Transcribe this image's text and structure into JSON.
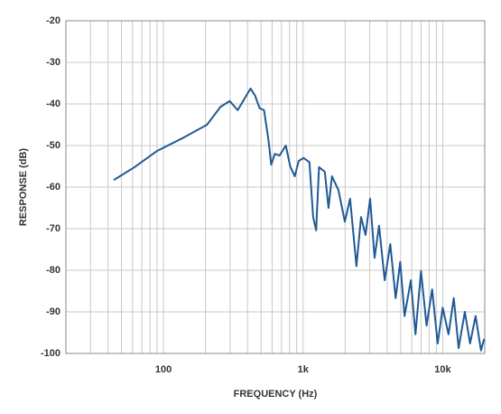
{
  "chart_data": {
    "type": "line",
    "x_label": "FREQUENCY (Hz)",
    "y_label": "RESPONSE (dB)",
    "log_x": true,
    "grid": true,
    "xlim": [
      20,
      20000
    ],
    "ylim": [
      -100,
      -20
    ],
    "xticks": [
      {
        "value": 100,
        "label": "100"
      },
      {
        "value": 1000,
        "label": "1k"
      },
      {
        "value": 10000,
        "label": "10k"
      }
    ],
    "xminorticks": [
      20,
      30,
      40,
      50,
      60,
      70,
      80,
      90,
      200,
      300,
      400,
      500,
      600,
      700,
      800,
      900,
      2000,
      3000,
      4000,
      5000,
      6000,
      7000,
      8000,
      9000
    ],
    "yticks": [
      -20,
      -30,
      -40,
      -50,
      -60,
      -70,
      -80,
      -90,
      -100
    ],
    "x": [
      44,
      62,
      90,
      141,
      205,
      256,
      298,
      340,
      384,
      420,
      453,
      488,
      525,
      565,
      591,
      628,
      678,
      752,
      808,
      872,
      930,
      1010,
      1110,
      1180,
      1240,
      1300,
      1430,
      1520,
      1610,
      1790,
      1990,
      2170,
      2410,
      2600,
      2800,
      3020,
      3250,
      3500,
      3840,
      4210,
      4600,
      4960,
      5330,
      5910,
      6380,
      6990,
      7660,
      8400,
      9200,
      10000,
      11000,
      12000,
      13000,
      14400,
      15700,
      17200,
      18800,
      19800
    ],
    "series": [
      {
        "color": "#1f5a96",
        "values": [
          -58.3,
          -55.2,
          -51.3,
          -48,
          -45,
          -40.7,
          -39.3,
          -41.5,
          -38.5,
          -36.3,
          -38,
          -41,
          -41.5,
          -48.7,
          -54.6,
          -52,
          -52.4,
          -50,
          -55,
          -57.4,
          -53.7,
          -53,
          -54,
          -67.2,
          -70.4,
          -55.2,
          -56.3,
          -65,
          -57.4,
          -60.7,
          -68.3,
          -62.8,
          -79,
          -67.2,
          -71.5,
          -62.8,
          -77,
          -69.3,
          -82.4,
          -73.7,
          -86.7,
          -78,
          -91,
          -82.4,
          -95.4,
          -80.2,
          -93.3,
          -84.6,
          -97.6,
          -89,
          -95.4,
          -86.7,
          -98.7,
          -90,
          -97.6,
          -91,
          -99.3,
          -96.5
        ]
      }
    ]
  }
}
